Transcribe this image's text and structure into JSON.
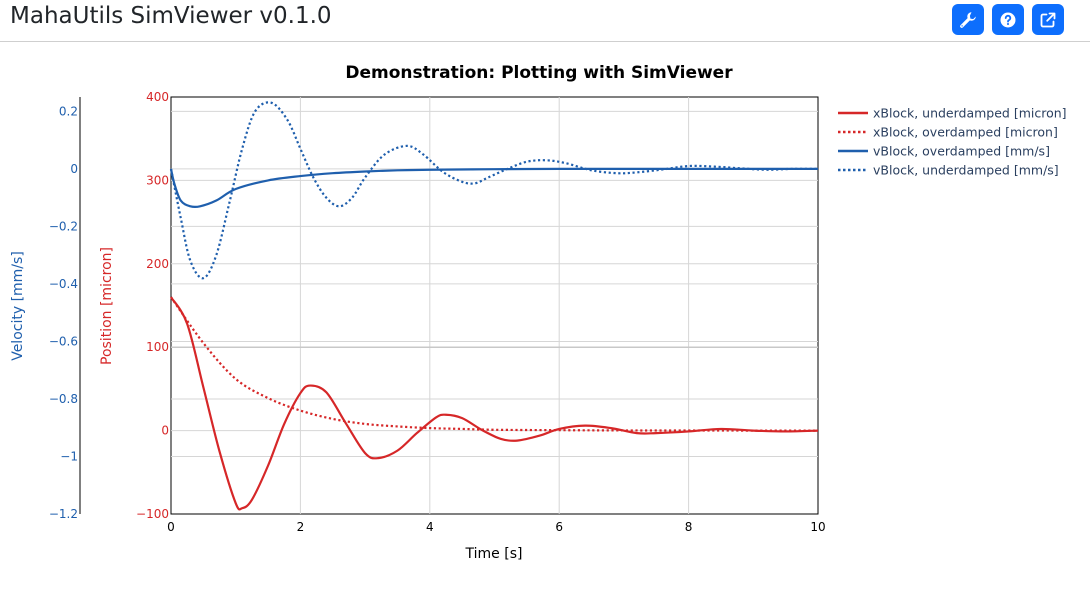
{
  "header": {
    "title": "MahaUtils SimViewer v0.1.0",
    "buttons": [
      "wrench-icon",
      "help-icon",
      "external-link-icon"
    ]
  },
  "colors": {
    "accent": "#0d6efd",
    "red": "#d62728",
    "blue": "#1f5fad"
  },
  "chart_data": {
    "type": "line",
    "title": "Demonstration: Plotting with SimViewer",
    "xlabel": "Time [s]",
    "ylabel_position": "Position [micron]",
    "ylabel_velocity": "Velocity [mm/s]",
    "xlim": [
      0,
      10
    ],
    "ylim_position": [
      -100,
      400
    ],
    "ylim_velocity": [
      -1.2,
      0.25
    ],
    "x_ticks": [
      0,
      2,
      4,
      6,
      8,
      10
    ],
    "x_tick_labels": [
      "0",
      "2",
      "4",
      "6",
      "8",
      "10"
    ],
    "position_ticks": [
      -100,
      0,
      100,
      200,
      300,
      400
    ],
    "position_tick_labels": [
      "−100",
      "0",
      "100",
      "200",
      "300",
      "400"
    ],
    "velocity_ticks": [
      -1.2,
      -1,
      -0.8,
      -0.6,
      -0.4,
      -0.2,
      0,
      0.2
    ],
    "velocity_tick_labels": [
      "−1.2",
      "−1",
      "−0.8",
      "−0.6",
      "−0.4",
      "−0.2",
      "0",
      "0.2"
    ],
    "legend_position": "top-right",
    "series": [
      {
        "name": "xBlock, underdamped [micron]",
        "axis": "position",
        "dash": "solid",
        "color": "#d62728",
        "x": [
          0,
          0.25,
          0.5,
          0.75,
          1.0,
          1.1,
          1.25,
          1.5,
          1.75,
          2.0,
          2.15,
          2.4,
          2.7,
          3.0,
          3.2,
          3.5,
          3.8,
          4.1,
          4.25,
          4.5,
          4.8,
          5.1,
          5.35,
          5.7,
          6.0,
          6.4,
          6.8,
          7.2,
          7.5,
          8.0,
          8.5,
          9.0,
          9.5,
          10.0
        ],
        "y": [
          160,
          128,
          52,
          -25,
          -87,
          -93,
          -83,
          -42,
          8,
          45,
          54,
          46,
          9,
          -27,
          -33,
          -24,
          -3,
          16,
          19,
          15,
          1,
          -10,
          -12,
          -6,
          2,
          6,
          3,
          -3,
          -3,
          -1,
          2,
          0,
          -1,
          0
        ]
      },
      {
        "name": "xBlock, overdamped [micron]",
        "axis": "position",
        "dash": "dot",
        "color": "#d62728",
        "x": [
          0,
          0.5,
          1.0,
          1.5,
          2.0,
          2.5,
          3.0,
          3.5,
          4.0,
          4.5,
          5.0,
          6.0,
          7.0,
          8.0,
          9.0,
          10.0
        ],
        "y": [
          160,
          105,
          62,
          39,
          24,
          14,
          8,
          5,
          3,
          2,
          1,
          0.5,
          0.2,
          0.1,
          0,
          0
        ]
      },
      {
        "name": "vBlock, overdamped [mm/s]",
        "axis": "velocity",
        "dash": "solid",
        "color": "#1f5fad",
        "x": [
          0,
          0.05,
          0.15,
          0.3,
          0.45,
          0.7,
          1.0,
          1.5,
          2.0,
          2.5,
          3.0,
          3.5,
          4.0,
          5.0,
          6.0,
          7.0,
          8.0,
          9.0,
          10.0
        ],
        "y": [
          0,
          -0.05,
          -0.11,
          -0.13,
          -0.13,
          -0.11,
          -0.07,
          -0.04,
          -0.025,
          -0.015,
          -0.009,
          -0.005,
          -0.003,
          -0.001,
          0,
          0,
          0,
          0,
          0
        ]
      },
      {
        "name": "vBlock, underdamped [mm/s]",
        "axis": "velocity",
        "dash": "dot",
        "color": "#1f5fad",
        "x": [
          0,
          0.15,
          0.3,
          0.5,
          0.7,
          0.9,
          1.1,
          1.3,
          1.55,
          1.8,
          2.0,
          2.2,
          2.4,
          2.6,
          2.8,
          3.0,
          3.3,
          3.65,
          3.9,
          4.2,
          4.5,
          4.7,
          4.9,
          5.2,
          5.5,
          5.8,
          6.1,
          6.5,
          6.9,
          7.2,
          7.6,
          8.0,
          8.4,
          8.8,
          9.2,
          9.6,
          10.0
        ],
        "y": [
          0,
          -0.17,
          -0.32,
          -0.38,
          -0.3,
          -0.12,
          0.07,
          0.2,
          0.23,
          0.17,
          0.07,
          -0.03,
          -0.1,
          -0.13,
          -0.1,
          -0.03,
          0.05,
          0.08,
          0.05,
          -0.01,
          -0.045,
          -0.05,
          -0.03,
          0.0,
          0.025,
          0.03,
          0.02,
          -0.005,
          -0.015,
          -0.012,
          -0.002,
          0.01,
          0.008,
          0.002,
          -0.003,
          0,
          0
        ]
      }
    ]
  }
}
